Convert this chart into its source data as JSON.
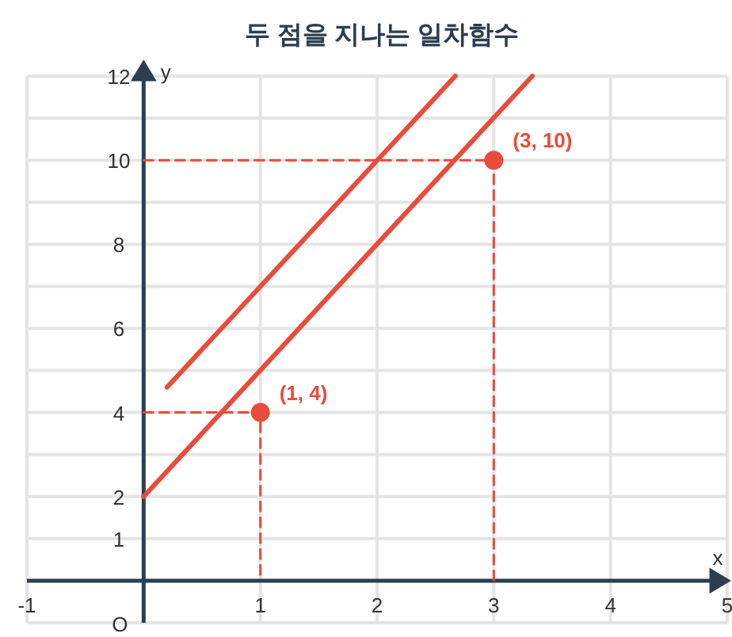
{
  "chart_data": {
    "type": "line",
    "title": "두 점을 지나는 일차함수",
    "xlabel": "x",
    "ylabel": "y",
    "xlim": [
      -1,
      5
    ],
    "ylim": [
      -1,
      12
    ],
    "xticks": [
      -1,
      1,
      2,
      3,
      4,
      5
    ],
    "yticks": [
      {
        "value": -1,
        "label": null
      },
      {
        "value": 0,
        "label": null
      },
      1,
      2,
      {
        "value": 3,
        "label": null
      },
      4,
      {
        "value": 5,
        "label": null
      },
      6,
      {
        "value": 7,
        "label": null
      },
      8,
      {
        "value": 9,
        "label": null
      },
      10,
      {
        "value": 11,
        "label": null
      },
      12
    ],
    "grid": true,
    "series": [
      {
        "color": "#e74c3c",
        "x": [
          0,
          3.33
        ],
        "values": [
          2,
          12
        ]
      },
      {
        "color": "#e74c3c",
        "x": [
          0.2,
          2.67
        ],
        "values": [
          4.6,
          12
        ]
      },
      {
        "color": "#e74c3c",
        "line_style": "dashed",
        "x": [
          0,
          1,
          1
        ],
        "values": [
          4,
          4,
          0
        ]
      },
      {
        "color": "#e74c3c",
        "line_style": "dashed",
        "x": [
          0,
          3,
          3
        ],
        "values": [
          10,
          10,
          0
        ]
      },
      {
        "type": "scatter",
        "color": "#e74c3c",
        "marker": "circle",
        "x": [
          1,
          3
        ],
        "values": [
          4,
          10
        ]
      }
    ],
    "annotations": [
      {
        "text": "(1, 4)",
        "x": 1,
        "y": 4
      },
      {
        "text": "(3, 10)",
        "x": 3,
        "y": 10
      },
      "O"
    ]
  }
}
